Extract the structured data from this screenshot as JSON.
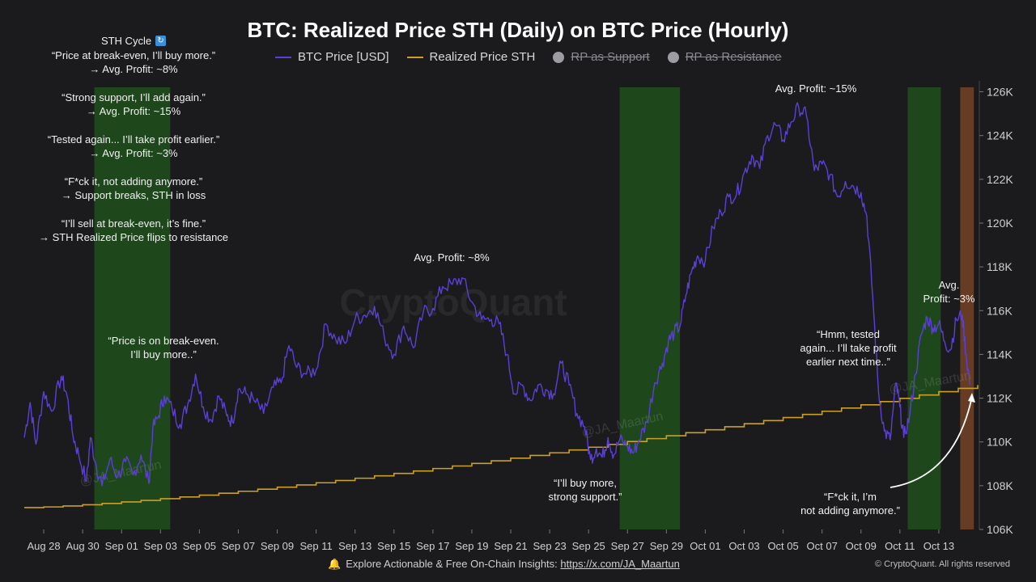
{
  "chart_data": {
    "type": "line",
    "title": "BTC: Realized Price STH (Daily) on BTC Price (Hourly)",
    "legend": [
      {
        "name": "BTC Price [USD]",
        "color": "#5b3fd6",
        "active": true
      },
      {
        "name": "Realized Price STH",
        "color": "#c8a02a",
        "active": true
      },
      {
        "name": "RP as Support",
        "color": "#9c9ca2",
        "active": false
      },
      {
        "name": "RP as Resistance",
        "color": "#9c9ca2",
        "active": false
      }
    ],
    "x_tick_labels": [
      "Aug 28",
      "Aug 30",
      "Sep 01",
      "Sep 03",
      "Sep 05",
      "Sep 07",
      "Sep 09",
      "Sep 11",
      "Sep 13",
      "Sep 15",
      "Sep 17",
      "Sep 19",
      "Sep 21",
      "Sep 23",
      "Sep 25",
      "Sep 27",
      "Sep 29",
      "Oct 01",
      "Oct 03",
      "Oct 05",
      "Oct 07",
      "Oct 09",
      "Oct 11",
      "Oct 13"
    ],
    "x_tick_days": [
      1,
      3,
      5,
      7,
      9,
      11,
      13,
      15,
      17,
      19,
      21,
      23,
      25,
      27,
      29,
      31,
      33,
      35,
      37,
      39,
      41,
      43,
      45,
      47
    ],
    "x_range_days": [
      0,
      49
    ],
    "y_range": [
      106000,
      126500
    ],
    "y_ticks": [
      106000,
      108000,
      110000,
      112000,
      114000,
      116000,
      118000,
      120000,
      122000,
      124000,
      126000
    ],
    "y_tick_labels": [
      "106K",
      "108K",
      "110K",
      "112K",
      "114K",
      "116K",
      "118K",
      "120K",
      "122K",
      "124K",
      "126K"
    ],
    "btc_price": {
      "days": [
        0,
        0.3,
        0.6,
        1,
        1.4,
        1.9,
        2.2,
        2.5,
        2.8,
        3.2,
        3.4,
        3.7,
        4,
        4.4,
        4.8,
        5.2,
        5.6,
        6,
        6.4,
        6.6,
        6.9,
        7.2,
        7.6,
        8,
        8.4,
        8.8,
        9.2,
        9.6,
        10,
        10.4,
        10.7,
        11,
        11.4,
        11.8,
        12.3,
        12.8,
        13.2,
        13.6,
        14,
        14.5,
        15,
        15.5,
        16,
        16.5,
        17,
        17.5,
        18,
        18.5,
        19,
        19.5,
        20,
        20.5,
        21,
        21.5,
        22,
        22.5,
        23,
        23.5,
        24,
        24.4,
        24.8,
        25.2,
        25.6,
        26,
        26.4,
        26.8,
        27.2,
        27.6,
        28,
        28.4,
        28.8,
        29.1,
        29.4,
        29.7,
        30,
        30.3,
        30.6,
        31,
        31.3,
        31.6,
        32,
        32.4,
        32.8,
        33.1,
        33.4,
        33.7,
        34,
        34.3,
        34.6,
        35,
        35.4,
        35.8,
        36.2,
        36.6,
        37,
        37.4,
        37.8,
        38.2,
        38.6,
        39,
        39.4,
        39.8,
        40.2,
        40.6,
        41,
        41.4,
        41.8,
        42.2,
        42.6,
        43,
        43.3,
        43.6,
        43.9,
        44.2,
        44.5,
        44.8,
        45,
        45.2,
        45.5,
        45.8,
        46.1,
        46.4,
        46.7,
        47,
        47.3,
        47.6,
        47.9,
        48.2,
        48.4,
        48.6
      ],
      "values": [
        110200,
        111800,
        109900,
        112300,
        111400,
        113000,
        112100,
        110300,
        109400,
        108200,
        110200,
        108900,
        108000,
        109200,
        108400,
        109100,
        108500,
        109400,
        108100,
        110600,
        111200,
        112100,
        111500,
        110800,
        111700,
        113100,
        111600,
        111000,
        112100,
        111200,
        110900,
        112400,
        112200,
        111900,
        111300,
        112500,
        112700,
        114400,
        113400,
        113100,
        113300,
        115400,
        114700,
        114500,
        115600,
        115800,
        116200,
        114800,
        114000,
        115300,
        114300,
        115900,
        116100,
        117100,
        117200,
        117500,
        116400,
        115600,
        115600,
        115400,
        114000,
        112200,
        112600,
        111900,
        112600,
        112400,
        112200,
        113600,
        112600,
        111300,
        110700,
        109200,
        109700,
        109300,
        110200,
        109400,
        110100,
        109800,
        109500,
        110100,
        110900,
        112700,
        113600,
        114600,
        115000,
        115300,
        116700,
        117800,
        118500,
        118300,
        119800,
        120500,
        121200,
        121300,
        122300,
        123100,
        122500,
        124000,
        124500,
        123800,
        124600,
        125300,
        124900,
        122400,
        122700,
        122200,
        121200,
        121900,
        121700,
        121400,
        120300,
        116700,
        112300,
        110500,
        110100,
        112700,
        111600,
        110200,
        111200,
        113100,
        114900,
        115700,
        115200,
        115400,
        114600,
        114200,
        115600,
        115800,
        114000,
        112600
      ],
      "color": "#5b3fd6"
    },
    "realized_price_sth": {
      "days": [
        0,
        49
      ],
      "values": [
        107000,
        112600
      ],
      "note": "stepped daily series",
      "color": "#c8a02a"
    },
    "shaded_zones": [
      {
        "start_day": 3.6,
        "end_day": 7.5,
        "color": "green",
        "label": "RP as Support"
      },
      {
        "start_day": 30.6,
        "end_day": 33.7,
        "color": "green",
        "label": "RP as Support"
      },
      {
        "start_day": 45.4,
        "end_day": 47.1,
        "color": "green",
        "label": "RP as Support"
      },
      {
        "start_day": 48.1,
        "end_day": 48.8,
        "color": "orange",
        "label": "RP as Resistance"
      }
    ],
    "annotations": [
      {
        "text": "Avg. Profit: ~8%",
        "day": 22.5,
        "value": 118200
      },
      {
        "text": "Avg. Profit: ~15%",
        "day": 41.3,
        "value": 126400
      },
      {
        "text": "Avg. Profit: ~3%",
        "day": 48,
        "value": 116000
      },
      {
        "text": "“Price is on break-even. I’ll buy more..”",
        "day": 7,
        "value": 114000
      },
      {
        "text": "“I’ll buy more, strong support.”",
        "day": 29,
        "value": 107700
      },
      {
        "text": "“Hmm, tested again... I’ll take profit earlier next time..”",
        "day": 44,
        "value": 113500
      },
      {
        "text": "“F*ck it, I’m not adding anymore.”",
        "day": 43.5,
        "value": 107000
      }
    ],
    "watermarks": [
      "CryptoQuant",
      "@JA_Maartun"
    ]
  },
  "sth_cycle": {
    "title": "STH Cycle",
    "items": [
      {
        "quote": "“Price at break-even, I’ll buy more.”",
        "result": "→ Avg. Profit: ~8%"
      },
      {
        "quote": "“Strong support, I’ll add again.”",
        "result": "→ Avg. Profit: ~15%"
      },
      {
        "quote": "“Tested again... I’ll take profit earlier.”",
        "result": "→ Avg. Profit: ~3%"
      },
      {
        "quote": "“F*ck it, not adding anymore.”",
        "result": "→ Support breaks, STH in loss"
      },
      {
        "quote": "“I’ll sell at break-even, it’s fine.”",
        "result": "→ STH Realized Price flips to resistance"
      }
    ]
  },
  "annotations": {
    "profit8": "Avg. Profit: ~8%",
    "profit15": "Avg. Profit: ~15%",
    "profit3_a": "Avg.",
    "profit3_b": "Profit: ~3%",
    "breakeven_a": "“Price is on break-even.",
    "breakeven_b": "I’ll buy more..”",
    "support_a": "“I’ll buy more,",
    "support_b": "strong support.”",
    "tested_a": "“Hmm, tested",
    "tested_b": "again... I’ll take profit",
    "tested_c": "earlier next time..”",
    "notadding_a": "“F*ck it, I’m",
    "notadding_b": "not adding anymore.”"
  },
  "footer": {
    "explore_text": "Explore Actionable & Free On-Chain Insights:",
    "link": "https://x.com/JA_Maartun",
    "copyright": "© CryptoQuant. All rights reserved"
  }
}
